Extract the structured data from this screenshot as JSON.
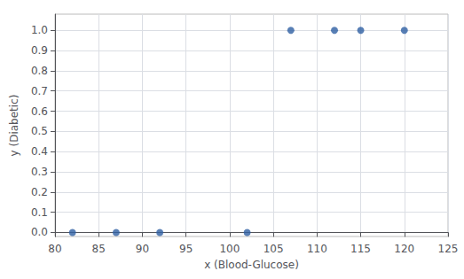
{
  "chart_data": {
    "type": "scatter",
    "x": [
      82,
      87,
      92,
      102,
      107,
      112,
      115,
      120
    ],
    "values": [
      0,
      0,
      0,
      0,
      1,
      1,
      1,
      1
    ],
    "xlabel": "x (Blood-Glucose)",
    "ylabel": "y (Diabetic)",
    "xlim": [
      80,
      125
    ],
    "ylim": [
      -0.02,
      1.08
    ],
    "xticks": [
      80,
      85,
      90,
      95,
      100,
      105,
      110,
      115,
      120,
      125
    ],
    "yticks": [
      {
        "value": 0,
        "label": "0.0"
      },
      0.1,
      0.2,
      0.3,
      0.4,
      0.5,
      0.6,
      0.7,
      0.8,
      0.9,
      {
        "value": 1,
        "label": "1.0"
      }
    ],
    "color": "#2e5fa3",
    "grid": true
  }
}
